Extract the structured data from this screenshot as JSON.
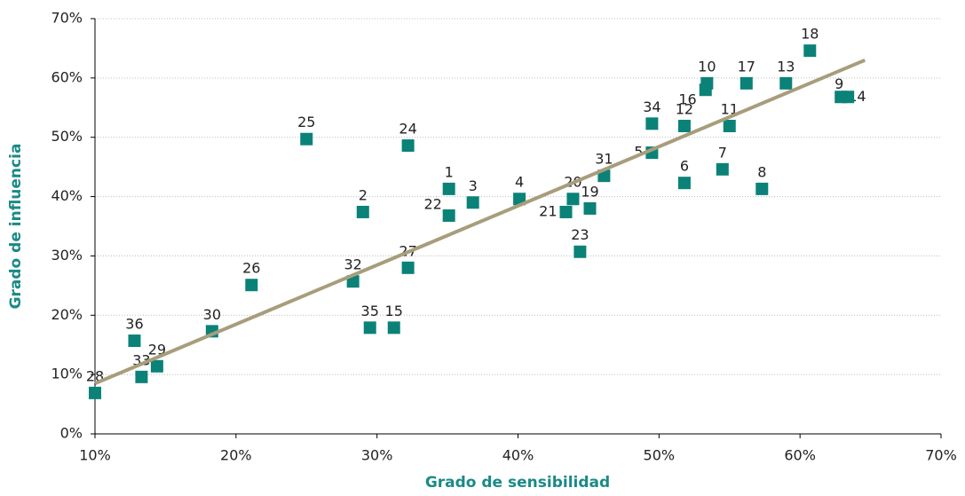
{
  "chart_data": {
    "type": "scatter",
    "xlabel": "Grado de sensibilidad",
    "ylabel": "Grado de influencia",
    "xlim": [
      10,
      70
    ],
    "ylim": [
      0,
      70
    ],
    "xticks": [
      {
        "value": 10,
        "label": "10%"
      },
      {
        "value": 20,
        "label": "20%"
      },
      {
        "value": 30,
        "label": "30%"
      },
      {
        "value": 40,
        "label": "40%"
      },
      {
        "value": 50,
        "label": "50%"
      },
      {
        "value": 60,
        "label": "60%"
      },
      {
        "value": 70,
        "label": "70%"
      }
    ],
    "yticks": [
      {
        "value": 0,
        "label": "0%"
      },
      {
        "value": 10,
        "label": "10%"
      },
      {
        "value": 20,
        "label": "20%"
      },
      {
        "value": 30,
        "label": "30%"
      },
      {
        "value": 40,
        "label": "40%"
      },
      {
        "value": 50,
        "label": "50%"
      },
      {
        "value": 60,
        "label": "60%"
      },
      {
        "value": 70,
        "label": "70%"
      }
    ],
    "grid": true,
    "series": [
      {
        "color": "#0a8278",
        "labels": [
          "28",
          "36",
          "33",
          "29",
          "30",
          "26",
          "25",
          "2",
          "32",
          "35",
          "15",
          "24",
          "27",
          "1",
          "22",
          "3",
          "4",
          "21",
          "20",
          "19",
          "23",
          "31",
          "5",
          "34",
          "6",
          "12",
          "16",
          "10",
          "7",
          "11",
          "8",
          "17",
          "13",
          "18",
          "14",
          "9"
        ],
        "x": [
          10.0,
          12.8,
          13.3,
          14.4,
          18.3,
          21.1,
          25.0,
          29.0,
          28.3,
          29.5,
          31.2,
          32.2,
          32.2,
          35.1,
          35.1,
          36.8,
          40.1,
          43.4,
          43.9,
          45.1,
          44.4,
          46.1,
          49.5,
          49.5,
          51.8,
          51.8,
          53.3,
          53.4,
          54.5,
          55.0,
          57.3,
          56.2,
          59.0,
          60.7,
          62.9,
          63.4
        ],
        "values": [
          6.9,
          15.7,
          9.6,
          11.4,
          17.3,
          25.1,
          49.7,
          37.4,
          25.7,
          17.9,
          17.9,
          48.6,
          28.0,
          41.3,
          36.8,
          39.0,
          39.6,
          37.4,
          39.6,
          38.0,
          30.7,
          43.5,
          47.4,
          52.3,
          42.3,
          51.9,
          58.0,
          59.1,
          44.6,
          51.9,
          41.3,
          59.1,
          59.1,
          64.6,
          56.8,
          56.8
        ]
      }
    ],
    "trendline": {
      "color": "#a89d7b",
      "x": [
        10,
        64.6
      ],
      "values": [
        8.5,
        63.0
      ]
    }
  }
}
